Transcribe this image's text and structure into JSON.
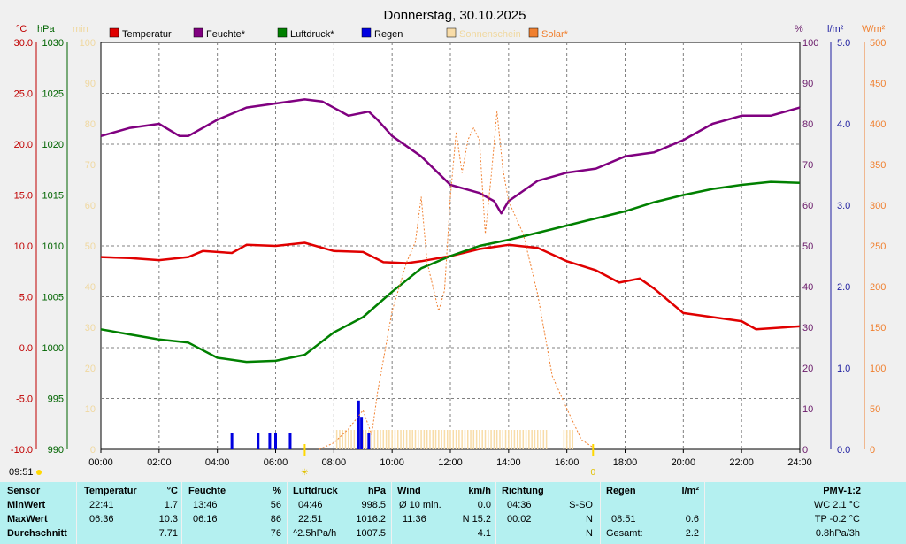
{
  "chart_data": {
    "type": "line",
    "title": "Donnerstag, 30.10.2025",
    "x_ticks": [
      "00:00",
      "02:00",
      "04:00",
      "06:00",
      "08:00",
      "10:00",
      "12:00",
      "14:00",
      "16:00",
      "18:00",
      "20:00",
      "22:00",
      "24:00"
    ],
    "x_range_hours": [
      0,
      24
    ],
    "axes": {
      "temp": {
        "unit": "°C",
        "range": [
          -10,
          30
        ],
        "ticks": [
          "30.0",
          "25.0",
          "20.0",
          "15.0",
          "10.0",
          "5.0",
          "0.0",
          "-5.0",
          "-10.0"
        ],
        "color": "#c00000"
      },
      "press": {
        "unit": "hPa",
        "range": [
          990,
          1030
        ],
        "ticks": [
          "1030",
          "1025",
          "1020",
          "1015",
          "1010",
          "1005",
          "1000",
          "995",
          "990"
        ],
        "color": "#006400"
      },
      "mins": {
        "unit": "min",
        "range": [
          0,
          100
        ],
        "ticks": [
          "100",
          "90",
          "80",
          "70",
          "60",
          "50",
          "40",
          "30",
          "20",
          "10",
          "0"
        ],
        "color": "#f0d8a0"
      },
      "humid": {
        "unit": "%",
        "range": [
          0,
          100
        ],
        "ticks": [
          "100",
          "90",
          "80",
          "70",
          "60",
          "50",
          "40",
          "30",
          "20",
          "10",
          "0"
        ],
        "color": "#6a1b6a"
      },
      "rain": {
        "unit": "l/m²",
        "range": [
          0,
          5
        ],
        "ticks": [
          "5.0",
          "4.0",
          "3.0",
          "2.0",
          "1.0",
          "0.0"
        ],
        "color": "#1e1ea0"
      },
      "solar": {
        "unit": "W/m²",
        "range": [
          0,
          500
        ],
        "ticks": [
          "500",
          "450",
          "400",
          "350",
          "300",
          "250",
          "200",
          "150",
          "100",
          "50",
          "0"
        ],
        "color": "#f08030"
      }
    },
    "legend": [
      {
        "label": "Temperatur",
        "color": "#e00000"
      },
      {
        "label": "Feuchte*",
        "color": "#800080"
      },
      {
        "label": "Luftdruck*",
        "color": "#008000"
      },
      {
        "label": "Regen",
        "color": "#0000e0"
      },
      {
        "label": "Sonnenschein",
        "color": "#f8dca8"
      },
      {
        "label": "Solar*",
        "color": "#f08030"
      }
    ],
    "series": [
      {
        "name": "Temperatur",
        "axis": "temp",
        "color": "#e00000",
        "points": [
          [
            0,
            8.9
          ],
          [
            1,
            8.8
          ],
          [
            2,
            8.6
          ],
          [
            3,
            8.9
          ],
          [
            3.5,
            9.5
          ],
          [
            4.5,
            9.3
          ],
          [
            5,
            10.1
          ],
          [
            6,
            10.0
          ],
          [
            7,
            10.3
          ],
          [
            8,
            9.5
          ],
          [
            9,
            9.4
          ],
          [
            9.7,
            8.4
          ],
          [
            10.5,
            8.3
          ],
          [
            11,
            8.5
          ],
          [
            12,
            9.0
          ],
          [
            13,
            9.7
          ],
          [
            14,
            10.1
          ],
          [
            15,
            9.8
          ],
          [
            16,
            8.5
          ],
          [
            17,
            7.6
          ],
          [
            17.8,
            6.4
          ],
          [
            18.5,
            6.8
          ],
          [
            19,
            5.8
          ],
          [
            20,
            3.4
          ],
          [
            21,
            3.0
          ],
          [
            22,
            2.6
          ],
          [
            22.5,
            1.8
          ],
          [
            24,
            2.1
          ]
        ]
      },
      {
        "name": "Feuchte*",
        "axis": "humid",
        "color": "#800080",
        "points": [
          [
            0,
            77
          ],
          [
            1,
            79
          ],
          [
            2,
            80
          ],
          [
            2.7,
            77
          ],
          [
            3,
            77
          ],
          [
            4,
            81
          ],
          [
            5,
            84
          ],
          [
            6,
            85
          ],
          [
            7,
            86
          ],
          [
            7.6,
            85.5
          ],
          [
            8.5,
            82
          ],
          [
            9.2,
            83
          ],
          [
            9.5,
            81
          ],
          [
            10,
            77
          ],
          [
            11,
            72
          ],
          [
            12,
            65
          ],
          [
            12.5,
            64
          ],
          [
            13,
            63
          ],
          [
            13.5,
            61
          ],
          [
            13.75,
            58
          ],
          [
            14,
            61
          ],
          [
            15,
            66
          ],
          [
            16,
            68
          ],
          [
            17,
            69
          ],
          [
            18,
            72
          ],
          [
            19,
            73
          ],
          [
            20,
            76
          ],
          [
            21,
            80
          ],
          [
            22,
            82
          ],
          [
            23,
            82
          ],
          [
            24,
            84
          ]
        ]
      },
      {
        "name": "Luftdruck*",
        "axis": "press",
        "color": "#008000",
        "points": [
          [
            0,
            1001.8
          ],
          [
            1,
            1001.3
          ],
          [
            2,
            1000.8
          ],
          [
            3,
            1000.5
          ],
          [
            4,
            999.0
          ],
          [
            5,
            998.6
          ],
          [
            6,
            998.7
          ],
          [
            7,
            999.3
          ],
          [
            8,
            1001.5
          ],
          [
            9,
            1003.0
          ],
          [
            10,
            1005.5
          ],
          [
            11,
            1007.8
          ],
          [
            12,
            1009.0
          ],
          [
            13,
            1010.0
          ],
          [
            14,
            1010.6
          ],
          [
            15,
            1011.3
          ],
          [
            16,
            1012.0
          ],
          [
            17,
            1012.7
          ],
          [
            18,
            1013.4
          ],
          [
            19,
            1014.3
          ],
          [
            20,
            1015.0
          ],
          [
            21,
            1015.6
          ],
          [
            22,
            1016.0
          ],
          [
            23,
            1016.3
          ],
          [
            24,
            1016.2
          ]
        ]
      },
      {
        "name": "Solar*",
        "axis": "solar",
        "color": "#f08030",
        "points": [
          [
            7.5,
            0
          ],
          [
            8,
            8
          ],
          [
            8.5,
            25
          ],
          [
            9,
            48
          ],
          [
            9.3,
            18
          ],
          [
            9.5,
            70
          ],
          [
            10,
            170
          ],
          [
            10.5,
            230
          ],
          [
            10.8,
            255
          ],
          [
            11,
            310
          ],
          [
            11.2,
            230
          ],
          [
            11.4,
            200
          ],
          [
            11.6,
            170
          ],
          [
            11.8,
            195
          ],
          [
            12,
            310
          ],
          [
            12.2,
            390
          ],
          [
            12.4,
            340
          ],
          [
            12.6,
            380
          ],
          [
            12.8,
            395
          ],
          [
            13,
            380
          ],
          [
            13.2,
            265
          ],
          [
            13.4,
            335
          ],
          [
            13.6,
            415
          ],
          [
            13.8,
            345
          ],
          [
            14,
            305
          ],
          [
            14.5,
            265
          ],
          [
            15,
            190
          ],
          [
            15.5,
            90
          ],
          [
            16,
            50
          ],
          [
            16.5,
            12
          ],
          [
            17,
            0
          ]
        ]
      }
    ],
    "rain_bars": [
      [
        4.5,
        0.2
      ],
      [
        5.4,
        0.2
      ],
      [
        5.8,
        0.2
      ],
      [
        6.0,
        0.2
      ],
      [
        6.5,
        0.2
      ],
      [
        8.85,
        0.6
      ],
      [
        8.95,
        0.4
      ],
      [
        9.2,
        0.2
      ]
    ],
    "sunshine_hours": [
      8.1,
      16.2
    ],
    "time_marks": [
      {
        "label": "09:51",
        "x_hours": -2.6
      },
      {
        "label": "",
        "x_hours": 7.0
      },
      {
        "label": "0",
        "x_hours": 16.9
      }
    ]
  },
  "stats": {
    "sensor": {
      "header": "Sensor",
      "rows": [
        "MinWert",
        "MaxWert",
        "Durchschnitt"
      ]
    },
    "temperatur": {
      "header": "Temperatur",
      "unit": "°C",
      "rows": [
        [
          "22:41",
          "1.7"
        ],
        [
          "06:36",
          "10.3"
        ],
        [
          "",
          "7.71"
        ]
      ]
    },
    "feuchte": {
      "header": "Feuchte",
      "unit": "%",
      "rows": [
        [
          "13:46",
          "56"
        ],
        [
          "06:16",
          "86"
        ],
        [
          "",
          "76"
        ]
      ]
    },
    "luftdruck": {
      "header": "Luftdruck",
      "unit": "hPa",
      "rows": [
        [
          "04:46",
          "998.5"
        ],
        [
          "22:51",
          "1016.2"
        ],
        [
          "^2.5hPa/h",
          "1007.5"
        ]
      ]
    },
    "wind": {
      "header": "Wind",
      "unit": "km/h",
      "rows": [
        [
          "Ø 10 min.",
          "0.0"
        ],
        [
          "11:36",
          "N 15.2"
        ],
        [
          "",
          "4.1"
        ]
      ]
    },
    "richtung": {
      "header": "Richtung",
      "rows": [
        [
          "04:36",
          "S-SO"
        ],
        [
          "00:02",
          "N"
        ],
        [
          "",
          "N"
        ]
      ]
    },
    "regen": {
      "header": "Regen",
      "unit": "l/m²",
      "rows": [
        [
          "",
          ""
        ],
        [
          "08:51",
          "0.6"
        ],
        [
          "Gesamt:",
          "2.2"
        ]
      ]
    },
    "pmv": {
      "header": "PMV-1:2",
      "rows": [
        "WC 2.1 °C",
        "TP -0.2 °C",
        "0.8hPa/3h"
      ]
    }
  }
}
